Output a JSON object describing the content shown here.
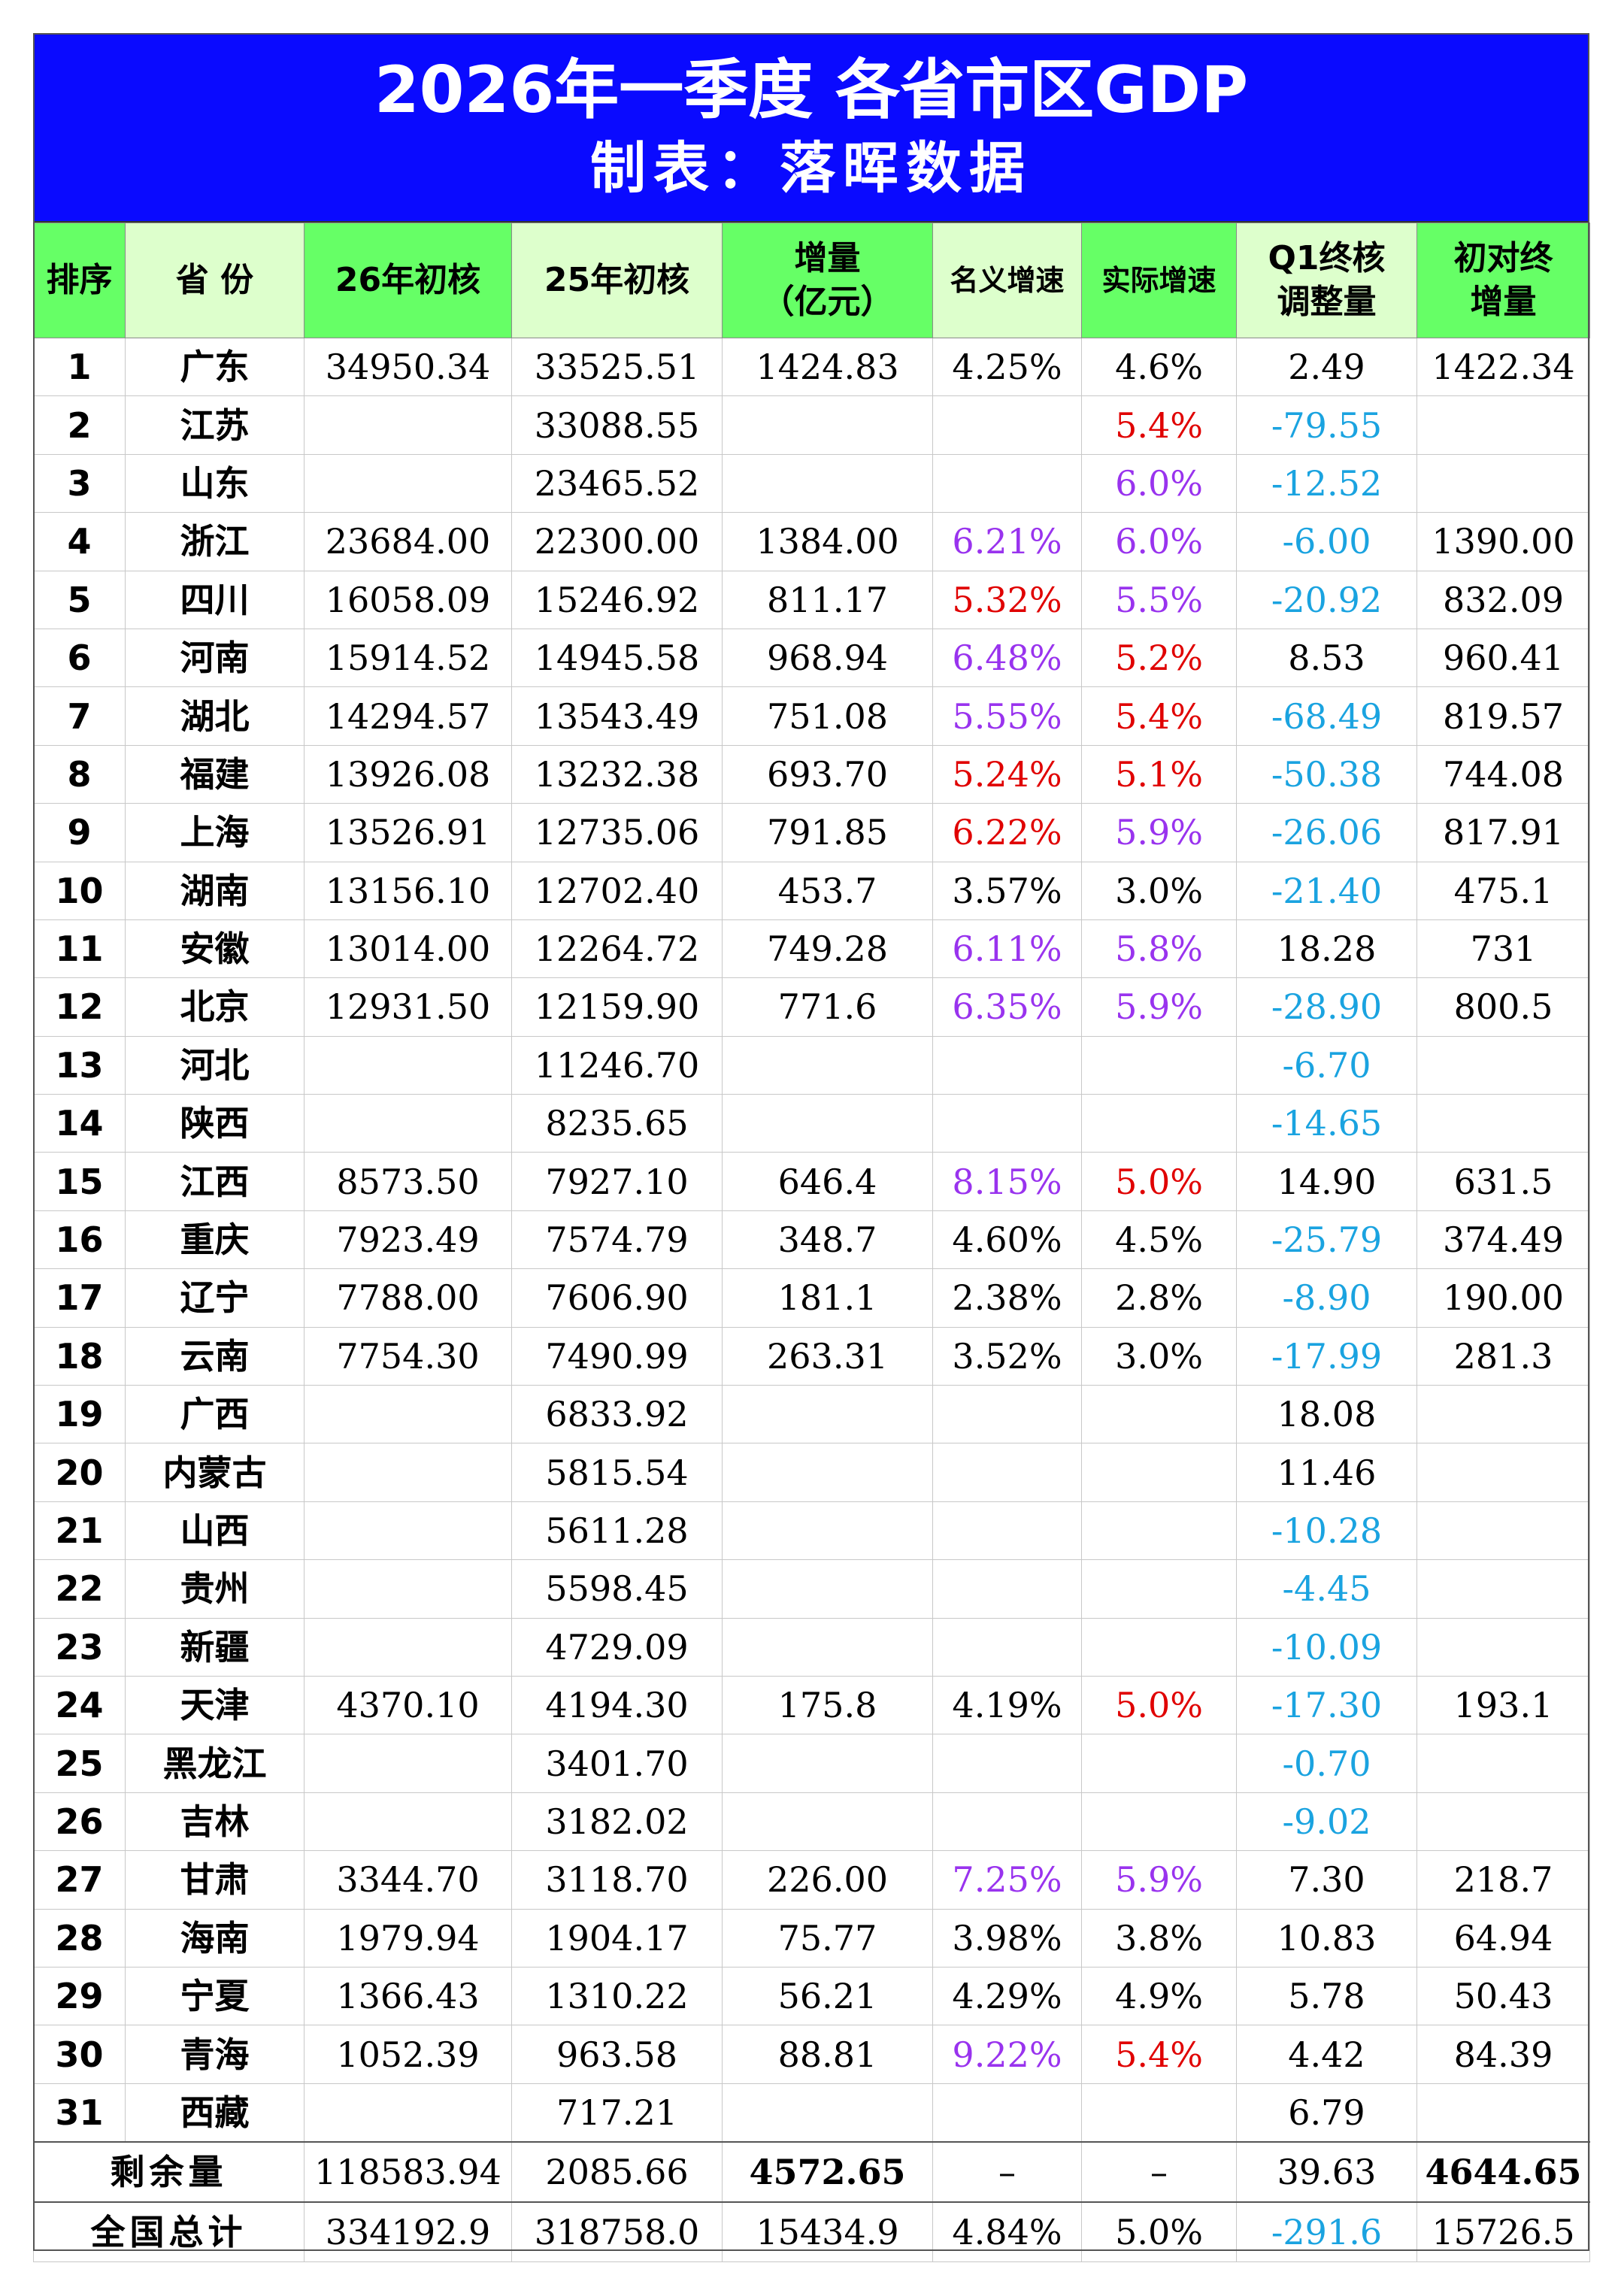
{
  "title": "2026年一季度 各省市区GDP",
  "subtitle": "制表：落晖数据",
  "headers": {
    "rank": "排序",
    "province": "省 份",
    "gdp26": "26年初核",
    "gdp25": "25年初核",
    "increase_l1": "增量",
    "increase_l2": "（亿元）",
    "nominal": "名义增速",
    "real": "实际增速",
    "adj_l1": "Q1终核",
    "adj_l2": "调整量",
    "final_l1": "初对终",
    "final_l2": "增量"
  },
  "colors": {
    "title_bg": "#0a0aff",
    "header_green": "#66ff66",
    "header_light": "#ddffcc",
    "red": "#e00000",
    "purple": "#9933ee",
    "cyan": "#1aa3e0"
  },
  "rows": [
    {
      "rank": "1",
      "province": "广东",
      "gdp26": "34950.34",
      "gdp25": "33525.51",
      "increase": "1424.83",
      "nominal": "4.25%",
      "nominal_color": "black",
      "real": "4.6%",
      "real_color": "black",
      "adj": "2.49",
      "adj_color": "black",
      "final": "1422.34"
    },
    {
      "rank": "2",
      "province": "江苏",
      "gdp26": "",
      "gdp25": "33088.55",
      "increase": "",
      "nominal": "",
      "nominal_color": "black",
      "real": "5.4%",
      "real_color": "red",
      "adj": "-79.55",
      "adj_color": "cyan",
      "final": ""
    },
    {
      "rank": "3",
      "province": "山东",
      "gdp26": "",
      "gdp25": "23465.52",
      "increase": "",
      "nominal": "",
      "nominal_color": "black",
      "real": "6.0%",
      "real_color": "purple",
      "adj": "-12.52",
      "adj_color": "cyan",
      "final": ""
    },
    {
      "rank": "4",
      "province": "浙江",
      "gdp26": "23684.00",
      "gdp25": "22300.00",
      "increase": "1384.00",
      "nominal": "6.21%",
      "nominal_color": "purple",
      "real": "6.0%",
      "real_color": "purple",
      "adj": "-6.00",
      "adj_color": "cyan",
      "final": "1390.00"
    },
    {
      "rank": "5",
      "province": "四川",
      "gdp26": "16058.09",
      "gdp25": "15246.92",
      "increase": "811.17",
      "nominal": "5.32%",
      "nominal_color": "red",
      "real": "5.5%",
      "real_color": "purple",
      "adj": "-20.92",
      "adj_color": "cyan",
      "final": "832.09"
    },
    {
      "rank": "6",
      "province": "河南",
      "gdp26": "15914.52",
      "gdp25": "14945.58",
      "increase": "968.94",
      "nominal": "6.48%",
      "nominal_color": "purple",
      "real": "5.2%",
      "real_color": "red",
      "adj": "8.53",
      "adj_color": "black",
      "final": "960.41"
    },
    {
      "rank": "7",
      "province": "湖北",
      "gdp26": "14294.57",
      "gdp25": "13543.49",
      "increase": "751.08",
      "nominal": "5.55%",
      "nominal_color": "purple",
      "real": "5.4%",
      "real_color": "red",
      "adj": "-68.49",
      "adj_color": "cyan",
      "final": "819.57"
    },
    {
      "rank": "8",
      "province": "福建",
      "gdp26": "13926.08",
      "gdp25": "13232.38",
      "increase": "693.70",
      "nominal": "5.24%",
      "nominal_color": "red",
      "real": "5.1%",
      "real_color": "red",
      "adj": "-50.38",
      "adj_color": "cyan",
      "final": "744.08"
    },
    {
      "rank": "9",
      "province": "上海",
      "gdp26": "13526.91",
      "gdp25": "12735.06",
      "increase": "791.85",
      "nominal": "6.22%",
      "nominal_color": "red",
      "real": "5.9%",
      "real_color": "purple",
      "adj": "-26.06",
      "adj_color": "cyan",
      "final": "817.91"
    },
    {
      "rank": "10",
      "province": "湖南",
      "gdp26": "13156.10",
      "gdp25": "12702.40",
      "increase": "453.7",
      "nominal": "3.57%",
      "nominal_color": "black",
      "real": "3.0%",
      "real_color": "black",
      "adj": "-21.40",
      "adj_color": "cyan",
      "final": "475.1"
    },
    {
      "rank": "11",
      "province": "安徽",
      "gdp26": "13014.00",
      "gdp25": "12264.72",
      "increase": "749.28",
      "nominal": "6.11%",
      "nominal_color": "purple",
      "real": "5.8%",
      "real_color": "purple",
      "adj": "18.28",
      "adj_color": "black",
      "final": "731"
    },
    {
      "rank": "12",
      "province": "北京",
      "gdp26": "12931.50",
      "gdp25": "12159.90",
      "increase": "771.6",
      "nominal": "6.35%",
      "nominal_color": "purple",
      "real": "5.9%",
      "real_color": "purple",
      "adj": "-28.90",
      "adj_color": "cyan",
      "final": "800.5"
    },
    {
      "rank": "13",
      "province": "河北",
      "gdp26": "",
      "gdp25": "11246.70",
      "increase": "",
      "nominal": "",
      "nominal_color": "black",
      "real": "",
      "real_color": "black",
      "adj": "-6.70",
      "adj_color": "cyan",
      "final": ""
    },
    {
      "rank": "14",
      "province": "陕西",
      "gdp26": "",
      "gdp25": "8235.65",
      "increase": "",
      "nominal": "",
      "nominal_color": "black",
      "real": "",
      "real_color": "black",
      "adj": "-14.65",
      "adj_color": "cyan",
      "final": ""
    },
    {
      "rank": "15",
      "province": "江西",
      "gdp26": "8573.50",
      "gdp25": "7927.10",
      "increase": "646.4",
      "nominal": "8.15%",
      "nominal_color": "purple",
      "real": "5.0%",
      "real_color": "red",
      "adj": "14.90",
      "adj_color": "black",
      "final": "631.5"
    },
    {
      "rank": "16",
      "province": "重庆",
      "gdp26": "7923.49",
      "gdp25": "7574.79",
      "increase": "348.7",
      "nominal": "4.60%",
      "nominal_color": "black",
      "real": "4.5%",
      "real_color": "black",
      "adj": "-25.79",
      "adj_color": "cyan",
      "final": "374.49"
    },
    {
      "rank": "17",
      "province": "辽宁",
      "gdp26": "7788.00",
      "gdp25": "7606.90",
      "increase": "181.1",
      "nominal": "2.38%",
      "nominal_color": "black",
      "real": "2.8%",
      "real_color": "black",
      "adj": "-8.90",
      "adj_color": "cyan",
      "final": "190.00"
    },
    {
      "rank": "18",
      "province": "云南",
      "gdp26": "7754.30",
      "gdp25": "7490.99",
      "increase": "263.31",
      "nominal": "3.52%",
      "nominal_color": "black",
      "real": "3.0%",
      "real_color": "black",
      "adj": "-17.99",
      "adj_color": "cyan",
      "final": "281.3"
    },
    {
      "rank": "19",
      "province": "广西",
      "gdp26": "",
      "gdp25": "6833.92",
      "increase": "",
      "nominal": "",
      "nominal_color": "black",
      "real": "",
      "real_color": "black",
      "adj": "18.08",
      "adj_color": "black",
      "final": ""
    },
    {
      "rank": "20",
      "province": "内蒙古",
      "gdp26": "",
      "gdp25": "5815.54",
      "increase": "",
      "nominal": "",
      "nominal_color": "black",
      "real": "",
      "real_color": "black",
      "adj": "11.46",
      "adj_color": "black",
      "final": ""
    },
    {
      "rank": "21",
      "province": "山西",
      "gdp26": "",
      "gdp25": "5611.28",
      "increase": "",
      "nominal": "",
      "nominal_color": "black",
      "real": "",
      "real_color": "black",
      "adj": "-10.28",
      "adj_color": "cyan",
      "final": ""
    },
    {
      "rank": "22",
      "province": "贵州",
      "gdp26": "",
      "gdp25": "5598.45",
      "increase": "",
      "nominal": "",
      "nominal_color": "black",
      "real": "",
      "real_color": "black",
      "adj": "-4.45",
      "adj_color": "cyan",
      "final": ""
    },
    {
      "rank": "23",
      "province": "新疆",
      "gdp26": "",
      "gdp25": "4729.09",
      "increase": "",
      "nominal": "",
      "nominal_color": "black",
      "real": "",
      "real_color": "black",
      "adj": "-10.09",
      "adj_color": "cyan",
      "final": ""
    },
    {
      "rank": "24",
      "province": "天津",
      "gdp26": "4370.10",
      "gdp25": "4194.30",
      "increase": "175.8",
      "nominal": "4.19%",
      "nominal_color": "black",
      "real": "5.0%",
      "real_color": "red",
      "adj": "-17.30",
      "adj_color": "cyan",
      "final": "193.1"
    },
    {
      "rank": "25",
      "province": "黑龙江",
      "gdp26": "",
      "gdp25": "3401.70",
      "increase": "",
      "nominal": "",
      "nominal_color": "black",
      "real": "",
      "real_color": "black",
      "adj": "-0.70",
      "adj_color": "cyan",
      "final": ""
    },
    {
      "rank": "26",
      "province": "吉林",
      "gdp26": "",
      "gdp25": "3182.02",
      "increase": "",
      "nominal": "",
      "nominal_color": "black",
      "real": "",
      "real_color": "black",
      "adj": "-9.02",
      "adj_color": "cyan",
      "final": ""
    },
    {
      "rank": "27",
      "province": "甘肃",
      "gdp26": "3344.70",
      "gdp25": "3118.70",
      "increase": "226.00",
      "nominal": "7.25%",
      "nominal_color": "purple",
      "real": "5.9%",
      "real_color": "purple",
      "adj": "7.30",
      "adj_color": "black",
      "final": "218.7"
    },
    {
      "rank": "28",
      "province": "海南",
      "gdp26": "1979.94",
      "gdp25": "1904.17",
      "increase": "75.77",
      "nominal": "3.98%",
      "nominal_color": "black",
      "real": "3.8%",
      "real_color": "black",
      "adj": "10.83",
      "adj_color": "black",
      "final": "64.94"
    },
    {
      "rank": "29",
      "province": "宁夏",
      "gdp26": "1366.43",
      "gdp25": "1310.22",
      "increase": "56.21",
      "nominal": "4.29%",
      "nominal_color": "black",
      "real": "4.9%",
      "real_color": "black",
      "adj": "5.78",
      "adj_color": "black",
      "final": "50.43"
    },
    {
      "rank": "30",
      "province": "青海",
      "gdp26": "1052.39",
      "gdp25": "963.58",
      "increase": "88.81",
      "nominal": "9.22%",
      "nominal_color": "purple",
      "real": "5.4%",
      "real_color": "red",
      "adj": "4.42",
      "adj_color": "black",
      "final": "84.39"
    },
    {
      "rank": "31",
      "province": "西藏",
      "gdp26": "",
      "gdp25": "717.21",
      "increase": "",
      "nominal": "",
      "nominal_color": "black",
      "real": "",
      "real_color": "black",
      "adj": "6.79",
      "adj_color": "black",
      "final": ""
    }
  ],
  "footer": {
    "remaining": {
      "label": "剩余量",
      "gdp26": "118583.94",
      "gdp25": "2085.66",
      "increase": "4572.65",
      "nominal": "–",
      "real": "–",
      "adj": "39.63",
      "final": "4644.65"
    },
    "total": {
      "label": "全国总计",
      "gdp26": "334192.9",
      "gdp25": "318758.0",
      "increase": "15434.9",
      "nominal": "4.84%",
      "real": "5.0%",
      "adj": "-291.6",
      "final": "15726.5"
    }
  }
}
